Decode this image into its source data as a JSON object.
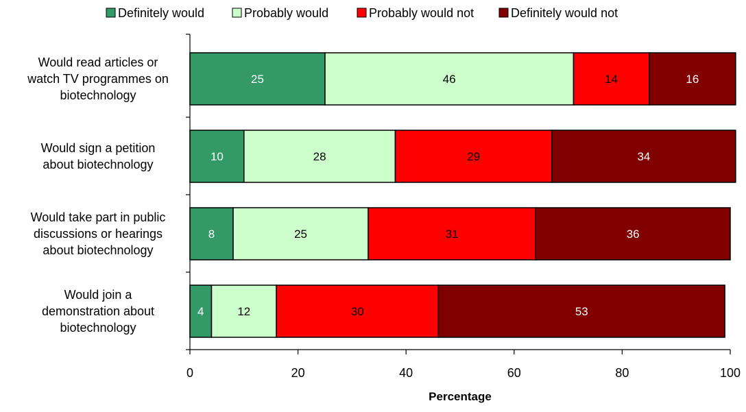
{
  "chart_data": {
    "type": "bar",
    "orientation": "horizontal",
    "stacked": true,
    "xlabel": "Percentage",
    "ylabel": "",
    "xlim": [
      0,
      100
    ],
    "xticks": [
      "0",
      "20",
      "40",
      "60",
      "80",
      "100"
    ],
    "grid": false,
    "legend_position": "top",
    "categories": [
      [
        "Would read articles or",
        "watch TV programmes on",
        "biotechnology"
      ],
      [
        "Would sign a petition",
        "about biotechnology"
      ],
      [
        "Would take part in public",
        "discussions or hearings",
        "about biotechnology"
      ],
      [
        "Would join a",
        "demonstration about",
        "biotechnology"
      ]
    ],
    "series": [
      {
        "name": "Definitely would",
        "color": "#339966",
        "label_color": "#ffffff",
        "values": [
          25,
          10,
          8,
          4
        ]
      },
      {
        "name": "Probably would",
        "color": "#ccffcc",
        "label_color": "#000000",
        "values": [
          46,
          28,
          25,
          12
        ]
      },
      {
        "name": "Probably would not",
        "color": "#ff0000",
        "label_color": "#000000",
        "values": [
          14,
          29,
          31,
          30
        ]
      },
      {
        "name": "Definitely would not",
        "color": "#800000",
        "label_color": "#ffffff",
        "values": [
          16,
          34,
          36,
          53
        ]
      }
    ]
  }
}
